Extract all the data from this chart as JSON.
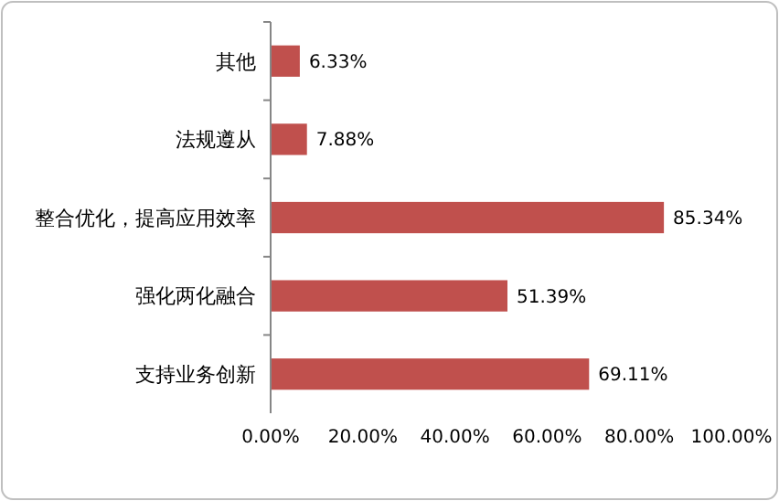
{
  "chart_data": {
    "type": "bar",
    "orientation": "horizontal",
    "categories": [
      "其他",
      "法规遵从",
      "整合优化，提高应用效率",
      "强化两化融合",
      "支持业务创新"
    ],
    "values": [
      6.33,
      7.88,
      85.34,
      51.39,
      69.11
    ],
    "value_labels": [
      "6.33%",
      "7.88%",
      "85.34%",
      "51.39%",
      "69.11%"
    ],
    "color": "#c0504d",
    "xlim": [
      0,
      100
    ],
    "xticks": [
      {
        "value": 0,
        "label": "0.00%"
      },
      {
        "value": 20,
        "label": "20.00%"
      },
      {
        "value": 40,
        "label": "40.00%"
      },
      {
        "value": 60,
        "label": "60.00%"
      },
      {
        "value": 80,
        "label": "80.00%"
      },
      {
        "value": 100,
        "label": "100.00%"
      }
    ],
    "grid": false
  }
}
